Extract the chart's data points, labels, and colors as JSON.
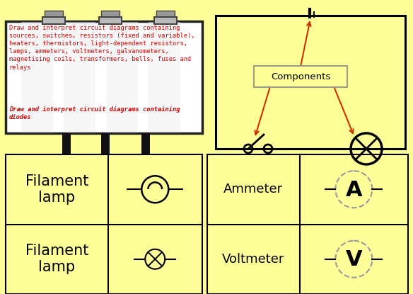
{
  "bg_color": "#FFFF99",
  "billboard_bg": "#FFFFFF",
  "billboard_border": "#222222",
  "text_normal": "#CC0000",
  "text_bold_italic": "#CC0000",
  "billboard_text1": "Draw and interpret circuit diagrams containing\nsources, switches, resistors (fixed and variable),\nheaters, thermistors, light-dependent resistors,\nlamps, ammeters, voltmeters, galvanometers,\nmagnetising coils, transformers, bells, fuses and\nrelays",
  "billboard_text2": "Draw and interpret circuit diagrams containing\ndiodes",
  "components_label": "Components",
  "filament_label": "Filament\nlamp",
  "ammeter_label": "Ammeter",
  "voltmeter_label": "Voltmeter",
  "circuit_color": "#000000",
  "arrow_color": "#CC3300",
  "pole_color": "#111111",
  "light_color": "#BBBBBB",
  "light_top_color": "#999999",
  "grid_line_color": "#000000"
}
